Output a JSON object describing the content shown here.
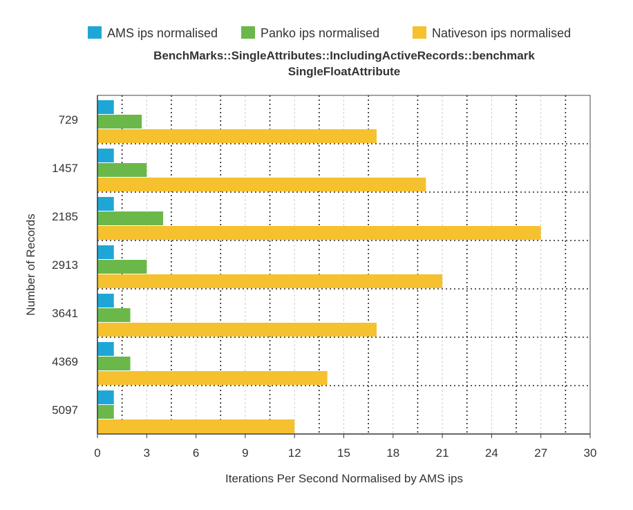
{
  "chart_data": {
    "type": "bar",
    "orientation": "horizontal",
    "title": "BenchMarks::SingleAttributes::IncludingActiveRecords::benchmark",
    "subtitle": "SingleFloatAttribute",
    "xlabel": "Iterations Per Second Normalised by AMS ips",
    "ylabel": "Number of Records",
    "xlim": [
      0,
      30
    ],
    "xticks": [
      "0",
      "3",
      "6",
      "9",
      "12",
      "15",
      "18",
      "21",
      "24",
      "27",
      "30"
    ],
    "categories": [
      "729",
      "1457",
      "2185",
      "2913",
      "3641",
      "4369",
      "5097"
    ],
    "legend_position": "top",
    "grid": true,
    "series": [
      {
        "name": "AMS ips normalised",
        "color": "#1ea7d6",
        "values": [
          1,
          1,
          1,
          1,
          1,
          1,
          1
        ]
      },
      {
        "name": "Panko ips normalised",
        "color": "#6ab84a",
        "values": [
          2.7,
          3,
          4,
          3,
          2,
          2,
          1
        ]
      },
      {
        "name": "Nativeson ips normalised",
        "color": "#f5c12e",
        "values": [
          17,
          20,
          27,
          21,
          17,
          14,
          12
        ]
      }
    ]
  }
}
